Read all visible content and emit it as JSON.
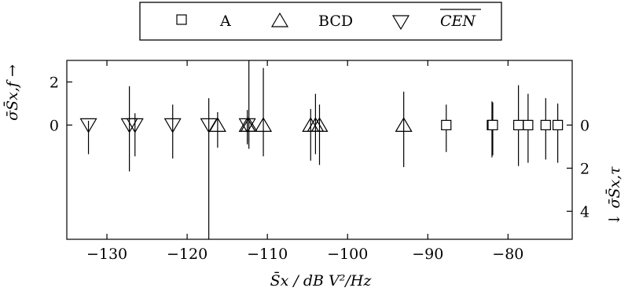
{
  "chart_data": {
    "type": "scatter",
    "x_axis": {
      "label": "S̄x / dB V²/Hz",
      "range": [
        -135,
        -72
      ],
      "ticks": [
        -130,
        -120,
        -110,
        -100,
        -90,
        -80
      ],
      "tick_labels": [
        "−130",
        "−120",
        "−110",
        "−100",
        "−90",
        "−80"
      ]
    },
    "y_axis_left": {
      "label": "σ̄S̄x,f →",
      "range": [
        -5.3,
        3.0
      ],
      "ticks": [
        2,
        0
      ],
      "tick_labels": [
        "2",
        "0"
      ]
    },
    "y_axis_right": {
      "label": "↓ σ̄S̄x,τ",
      "ticks": [
        0,
        -2,
        -4
      ],
      "tick_labels": [
        "0",
        "2",
        "4"
      ]
    },
    "legend": {
      "placement": "top-center-outside",
      "entries": [
        {
          "label": "A",
          "marker": "square"
        },
        {
          "label": "BCD",
          "marker": "triangle-up"
        },
        {
          "label": "CEN",
          "marker": "triangle-down",
          "overline": true
        }
      ]
    },
    "grid": false,
    "series": [
      {
        "name": "A",
        "marker": "square",
        "points": [
          {
            "x": -87.7,
            "up": 0.95,
            "down": 1.25
          },
          {
            "x": -82.0,
            "up": 1.1,
            "down": 1.5
          },
          {
            "x": -81.9,
            "up": 1.05,
            "down": 1.4
          },
          {
            "x": -78.7,
            "up": 1.85,
            "down": 1.9
          },
          {
            "x": -77.5,
            "up": 1.45,
            "down": 1.75
          },
          {
            "x": -75.3,
            "up": 1.25,
            "down": 1.6
          },
          {
            "x": -73.8,
            "up": 1.0,
            "down": 1.75
          }
        ]
      },
      {
        "name": "BCD",
        "marker": "triangle-up",
        "points": [
          {
            "x": -116.2,
            "up": 0.6,
            "down": 1.05
          },
          {
            "x": -112.5,
            "up": 0.7,
            "down": 0.8
          },
          {
            "x": -112.3,
            "up": 3.0,
            "down": 1.1
          },
          {
            "x": -110.5,
            "up": 2.65,
            "down": 1.45
          },
          {
            "x": -104.6,
            "up": 0.75,
            "down": 1.65
          },
          {
            "x": -104.0,
            "up": 1.45,
            "down": 1.35
          },
          {
            "x": -103.5,
            "up": 0.95,
            "down": 1.85
          },
          {
            "x": -93.0,
            "up": 1.55,
            "down": 1.95
          }
        ]
      },
      {
        "name": "CEN",
        "marker": "triangle-down",
        "points": [
          {
            "x": -132.3,
            "up": 0.2,
            "down": 1.35
          },
          {
            "x": -127.2,
            "up": 1.8,
            "down": 2.15
          },
          {
            "x": -126.5,
            "up": 0.55,
            "down": 1.45
          },
          {
            "x": -121.8,
            "up": 0.95,
            "down": 1.55
          },
          {
            "x": -117.3,
            "up": 1.25,
            "down": 5.3
          },
          {
            "x": -112.5,
            "up": 0.4,
            "down": 0.9
          }
        ]
      }
    ]
  }
}
